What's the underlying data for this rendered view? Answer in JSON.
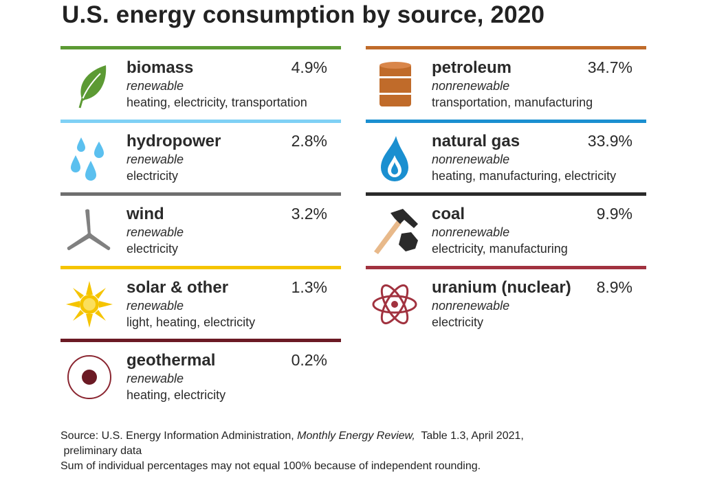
{
  "title": "U.S. energy consumption by source, 2020",
  "left_items": [
    {
      "name": "biomass",
      "percent": "4.9%",
      "type": "renewable",
      "uses": "heating, electricity, transportation",
      "color": "#5c9a34",
      "icon": "leaf-icon"
    },
    {
      "name": "hydropower",
      "percent": "2.8%",
      "type": "renewable",
      "uses": "electricity",
      "color": "#7fd0f5",
      "icon": "water-drops-icon"
    },
    {
      "name": "wind",
      "percent": "3.2%",
      "type": "renewable",
      "uses": "electricity",
      "color": "#6e6e6e",
      "icon": "wind-turbine-icon"
    },
    {
      "name": "solar & other",
      "percent": "1.3%",
      "type": "renewable",
      "uses": "light, heating, electricity",
      "color": "#f5c400",
      "icon": "sun-icon"
    },
    {
      "name": "geothermal",
      "percent": "0.2%",
      "type": "renewable",
      "uses": "heating, electricity",
      "color": "#6b1a24",
      "icon": "geothermal-icon"
    }
  ],
  "right_items": [
    {
      "name": "petroleum",
      "percent": "34.7%",
      "type": "nonrenewable",
      "uses": "transportation, manufacturing",
      "color": "#c06b2a",
      "icon": "oil-barrel-icon"
    },
    {
      "name": "natural gas",
      "percent": "33.9%",
      "type": "nonrenewable",
      "uses": "heating, manufacturing, electricity",
      "color": "#1a8fd0",
      "icon": "gas-flame-icon"
    },
    {
      "name": "coal",
      "percent": "9.9%",
      "type": "nonrenewable",
      "uses": "electricity, manufacturing",
      "color": "#2a2a2a",
      "icon": "coal-pickaxe-icon"
    },
    {
      "name": "uranium (nuclear)",
      "percent": "8.9%",
      "type": "nonrenewable",
      "uses": "electricity",
      "color": "#a1323f",
      "icon": "atom-icon"
    }
  ],
  "source": {
    "prefix": "Source: U.S. Energy Information Administration, ",
    "publication": "Monthly Energy Review,",
    "suffix": "  Table 1.3, April 2021,",
    "line2": " preliminary data",
    "note": "Sum of individual percentages may not equal 100% because of independent rounding."
  }
}
